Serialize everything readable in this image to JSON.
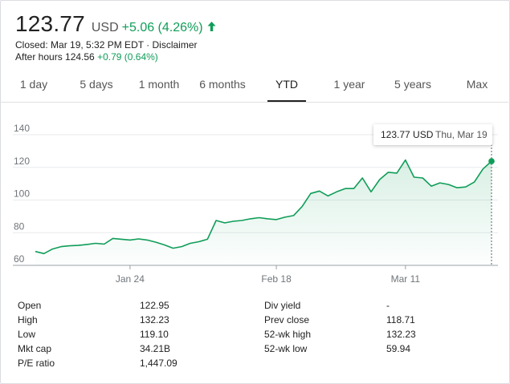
{
  "quote": {
    "price": "123.77",
    "currency": "USD",
    "change": "+5.06 (4.26%)",
    "closed_line": "Closed: Mar 19, 5:32 PM EDT · Disclaimer",
    "after_hours_label": "After hours 124.56",
    "after_hours_change": "+0.79 (0.64%)",
    "change_color": "#0f9d58"
  },
  "tabs": [
    {
      "label": "1 day",
      "active": false
    },
    {
      "label": "5 days",
      "active": false
    },
    {
      "label": "1 month",
      "active": false
    },
    {
      "label": "6 months",
      "active": false
    },
    {
      "label": "YTD",
      "active": true
    },
    {
      "label": "1 year",
      "active": false
    },
    {
      "label": "5 years",
      "active": false
    },
    {
      "label": "Max",
      "active": false
    }
  ],
  "tooltip": {
    "value": "123.77 USD",
    "date": "Thu, Mar 19"
  },
  "chart_data": {
    "type": "area",
    "title": "",
    "xlabel": "",
    "ylabel": "",
    "ylim": [
      60,
      140
    ],
    "yticks": [
      60,
      80,
      100,
      120,
      140
    ],
    "grid": true,
    "x_tick_labels": [
      {
        "label": "Jan 24",
        "x": 11
      },
      {
        "label": "Feb 18",
        "x": 28
      },
      {
        "label": "Mar 11",
        "x": 43
      }
    ],
    "series": [
      {
        "color": "#0f9d58",
        "values": [
          68.5,
          67.2,
          70.0,
          71.5,
          72.0,
          72.2,
          72.8,
          73.5,
          73.0,
          76.5,
          76.0,
          75.5,
          76.2,
          75.5,
          74.2,
          72.5,
          70.5,
          71.5,
          73.5,
          74.5,
          76.0,
          87.5,
          86.0,
          87.0,
          87.5,
          88.5,
          89.2,
          88.5,
          88.0,
          89.5,
          90.5,
          96.0,
          104.0,
          105.5,
          102.5,
          105.0,
          107.0,
          107.0,
          113.5,
          105.0,
          112.5,
          117.0,
          116.5,
          124.5,
          114.0,
          113.5,
          108.5,
          110.5,
          109.5,
          107.5,
          108.0,
          111.0,
          119.0,
          123.77
        ]
      }
    ]
  },
  "stats": {
    "left": [
      {
        "label": "Open",
        "value": "122.95"
      },
      {
        "label": "High",
        "value": "132.23"
      },
      {
        "label": "Low",
        "value": "119.10"
      },
      {
        "label": "Mkt cap",
        "value": "34.21B"
      },
      {
        "label": "P/E ratio",
        "value": "1,447.09"
      }
    ],
    "right": [
      {
        "label": "Div yield",
        "value": "-"
      },
      {
        "label": "Prev close",
        "value": "118.71"
      },
      {
        "label": "52-wk high",
        "value": "132.23"
      },
      {
        "label": "52-wk low",
        "value": "59.94"
      }
    ]
  }
}
